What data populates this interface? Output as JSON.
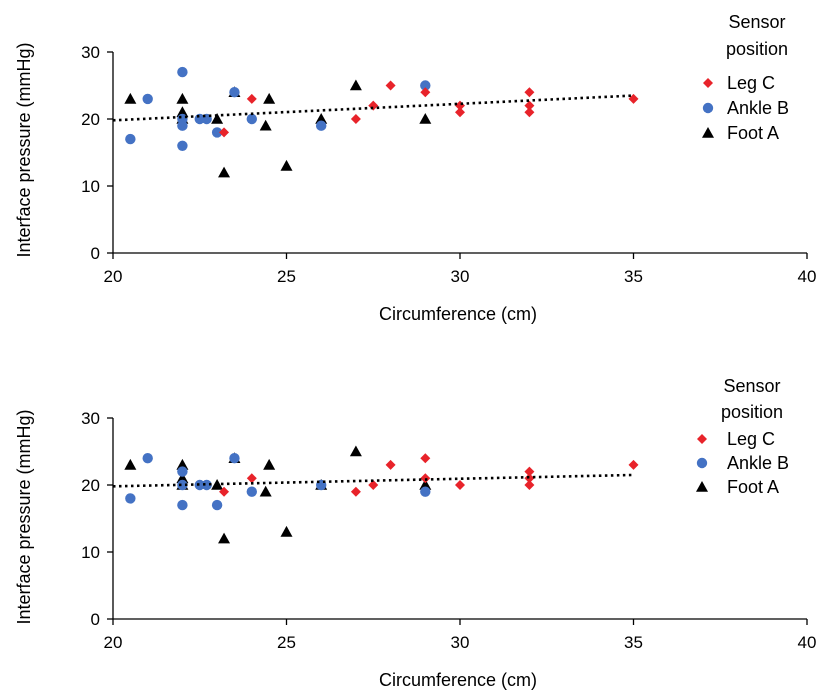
{
  "colors": {
    "leg": "#e8232a",
    "ankle": "#4472c4",
    "foot": "#000000",
    "axis": "#000000",
    "trend": "#000000",
    "background": "#ffffff"
  },
  "chart_data": [
    {
      "type": "scatter",
      "xlabel": "Circumference (cm)",
      "ylabel": "Interface pressure (mmHg)",
      "xlim": [
        20,
        40
      ],
      "ylim": [
        0,
        30
      ],
      "xticks": [
        "20",
        "25",
        "30",
        "35",
        "40"
      ],
      "yticks": [
        "0",
        "10",
        "20",
        "30"
      ],
      "grid": false,
      "legend_placement": "top-right",
      "legend_title": [
        "Sensor",
        "position"
      ],
      "series": [
        {
          "name": "Leg C",
          "marker": "diamond",
          "color": "#e8232a",
          "points": [
            [
              23.2,
              18
            ],
            [
              24,
              23
            ],
            [
              27,
              20
            ],
            [
              27.5,
              22
            ],
            [
              28,
              25
            ],
            [
              29,
              24
            ],
            [
              30,
              22
            ],
            [
              30,
              21
            ],
            [
              32,
              24
            ],
            [
              32,
              22
            ],
            [
              32,
              21
            ],
            [
              35,
              23
            ]
          ]
        },
        {
          "name": "Ankle B",
          "marker": "circle",
          "color": "#4472c4",
          "points": [
            [
              20.5,
              17
            ],
            [
              21,
              23
            ],
            [
              22,
              27
            ],
            [
              22,
              20
            ],
            [
              22,
              19
            ],
            [
              22,
              16
            ],
            [
              22.5,
              20
            ],
            [
              22.7,
              20
            ],
            [
              23,
              18
            ],
            [
              23.5,
              24
            ],
            [
              24,
              20
            ],
            [
              26,
              19
            ],
            [
              29,
              25
            ]
          ]
        },
        {
          "name": "Foot A",
          "marker": "triangle",
          "color": "#000000",
          "points": [
            [
              20.5,
              23
            ],
            [
              22,
              23
            ],
            [
              22,
              21
            ],
            [
              22,
              20
            ],
            [
              23,
              20
            ],
            [
              23.2,
              12
            ],
            [
              23.5,
              24
            ],
            [
              24.4,
              19
            ],
            [
              24.5,
              23
            ],
            [
              25,
              13
            ],
            [
              26,
              20
            ],
            [
              27,
              25
            ],
            [
              29,
              20
            ]
          ]
        }
      ],
      "trendline": {
        "style": "dotted",
        "x": [
          20,
          35
        ],
        "y": [
          19.8,
          23.5
        ]
      }
    },
    {
      "type": "scatter",
      "xlabel": "Circumference (cm)",
      "ylabel": "Interface pressure (mmHg)",
      "xlim": [
        20,
        40
      ],
      "ylim": [
        0,
        30
      ],
      "xticks": [
        "20",
        "25",
        "30",
        "35",
        "40"
      ],
      "yticks": [
        "0",
        "10",
        "20",
        "30"
      ],
      "grid": false,
      "legend_placement": "top-right",
      "legend_title": [
        "Sensor",
        "position"
      ],
      "series": [
        {
          "name": "Leg C",
          "marker": "diamond",
          "color": "#e8232a",
          "points": [
            [
              23.2,
              19
            ],
            [
              24,
              21
            ],
            [
              27,
              19
            ],
            [
              27.5,
              20
            ],
            [
              28,
              23
            ],
            [
              29,
              24
            ],
            [
              29,
              21
            ],
            [
              30,
              20
            ],
            [
              32,
              22
            ],
            [
              32,
              21
            ],
            [
              32,
              20
            ],
            [
              35,
              23
            ]
          ]
        },
        {
          "name": "Ankle B",
          "marker": "circle",
          "color": "#4472c4",
          "points": [
            [
              20.5,
              18
            ],
            [
              21,
              24
            ],
            [
              22,
              22
            ],
            [
              22,
              20
            ],
            [
              22,
              17
            ],
            [
              22.5,
              20
            ],
            [
              22.7,
              20
            ],
            [
              23,
              17
            ],
            [
              23.5,
              24
            ],
            [
              24,
              19
            ],
            [
              26,
              20
            ],
            [
              29,
              19
            ]
          ]
        },
        {
          "name": "Foot A",
          "marker": "triangle",
          "color": "#000000",
          "points": [
            [
              20.5,
              23
            ],
            [
              22,
              23
            ],
            [
              22,
              21
            ],
            [
              22,
              20
            ],
            [
              23,
              20
            ],
            [
              23.2,
              12
            ],
            [
              23.5,
              24
            ],
            [
              24.4,
              19
            ],
            [
              24.5,
              23
            ],
            [
              25,
              13
            ],
            [
              26,
              20
            ],
            [
              27,
              25
            ],
            [
              29,
              20
            ]
          ]
        }
      ],
      "trendline": {
        "style": "dotted",
        "x": [
          20,
          35
        ],
        "y": [
          19.8,
          21.5
        ]
      }
    }
  ]
}
